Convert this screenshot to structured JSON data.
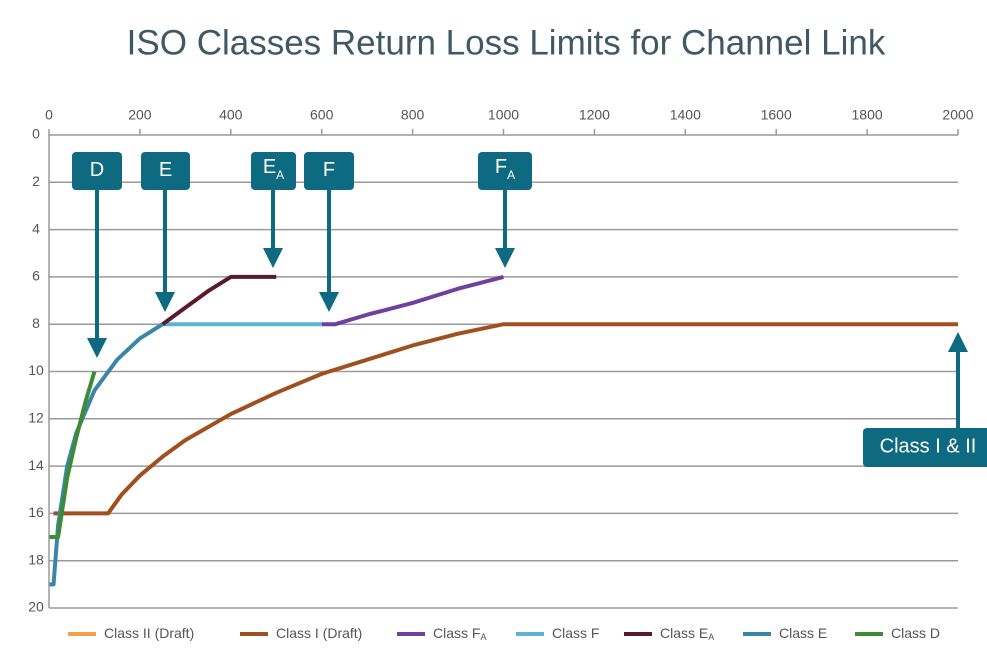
{
  "chart_data": {
    "type": "line",
    "title": "ISO Classes Return Loss Limits for Channel Link",
    "xlim": [
      0,
      2000
    ],
    "xticks": [
      0,
      200,
      400,
      600,
      800,
      1000,
      1200,
      1400,
      1600,
      1800,
      2000
    ],
    "ylim": [
      0,
      20
    ],
    "yticks": [
      0,
      2,
      4,
      6,
      8,
      10,
      12,
      14,
      16,
      18,
      20
    ],
    "y_inverted": true,
    "grid": true,
    "series": [
      {
        "name": "Class II (Draft)",
        "color": "#f4a045",
        "x": [],
        "values": []
      },
      {
        "name": "Class I (Draft)",
        "color": "#a0501e",
        "x": [
          10,
          130,
          160,
          200,
          250,
          300,
          400,
          500,
          600,
          700,
          800,
          900,
          1000,
          2000
        ],
        "values": [
          16,
          16,
          15.2,
          14.4,
          13.6,
          12.9,
          11.8,
          10.9,
          10.1,
          9.5,
          8.9,
          8.4,
          8,
          8
        ]
      },
      {
        "name": "Class F",
        "name_sub": "A",
        "color": "#7040a0",
        "x": [
          600,
          630,
          700,
          800,
          900,
          1000
        ],
        "values": [
          8,
          8,
          7.6,
          7.1,
          6.5,
          6
        ]
      },
      {
        "name": "Class F",
        "color": "#5ab4d8",
        "x": [
          250,
          600
        ],
        "values": [
          8,
          8
        ]
      },
      {
        "name": "Class E",
        "name_sub": "A",
        "color": "#5a1a28",
        "x": [
          250,
          300,
          350,
          400,
          500
        ],
        "values": [
          8,
          7.3,
          6.6,
          6,
          6
        ]
      },
      {
        "name": "Class E",
        "color": "#3a86a8",
        "x": [
          1,
          10,
          20,
          40,
          60,
          100,
          150,
          200,
          250
        ],
        "values": [
          19,
          19,
          16.5,
          14,
          12.6,
          10.8,
          9.5,
          8.6,
          8
        ]
      },
      {
        "name": "Class D",
        "color": "#3f8a35",
        "x": [
          1,
          20,
          40,
          60,
          80,
          100
        ],
        "values": [
          17,
          17,
          14.5,
          12.8,
          11.3,
          10
        ]
      }
    ],
    "annotations": [
      {
        "text": "D"
      },
      {
        "text": "E"
      },
      {
        "text": "E",
        "sub": "A"
      },
      {
        "text": "F"
      },
      {
        "text": "F",
        "sub": "A"
      },
      {
        "text": "Class I & II"
      }
    ]
  }
}
